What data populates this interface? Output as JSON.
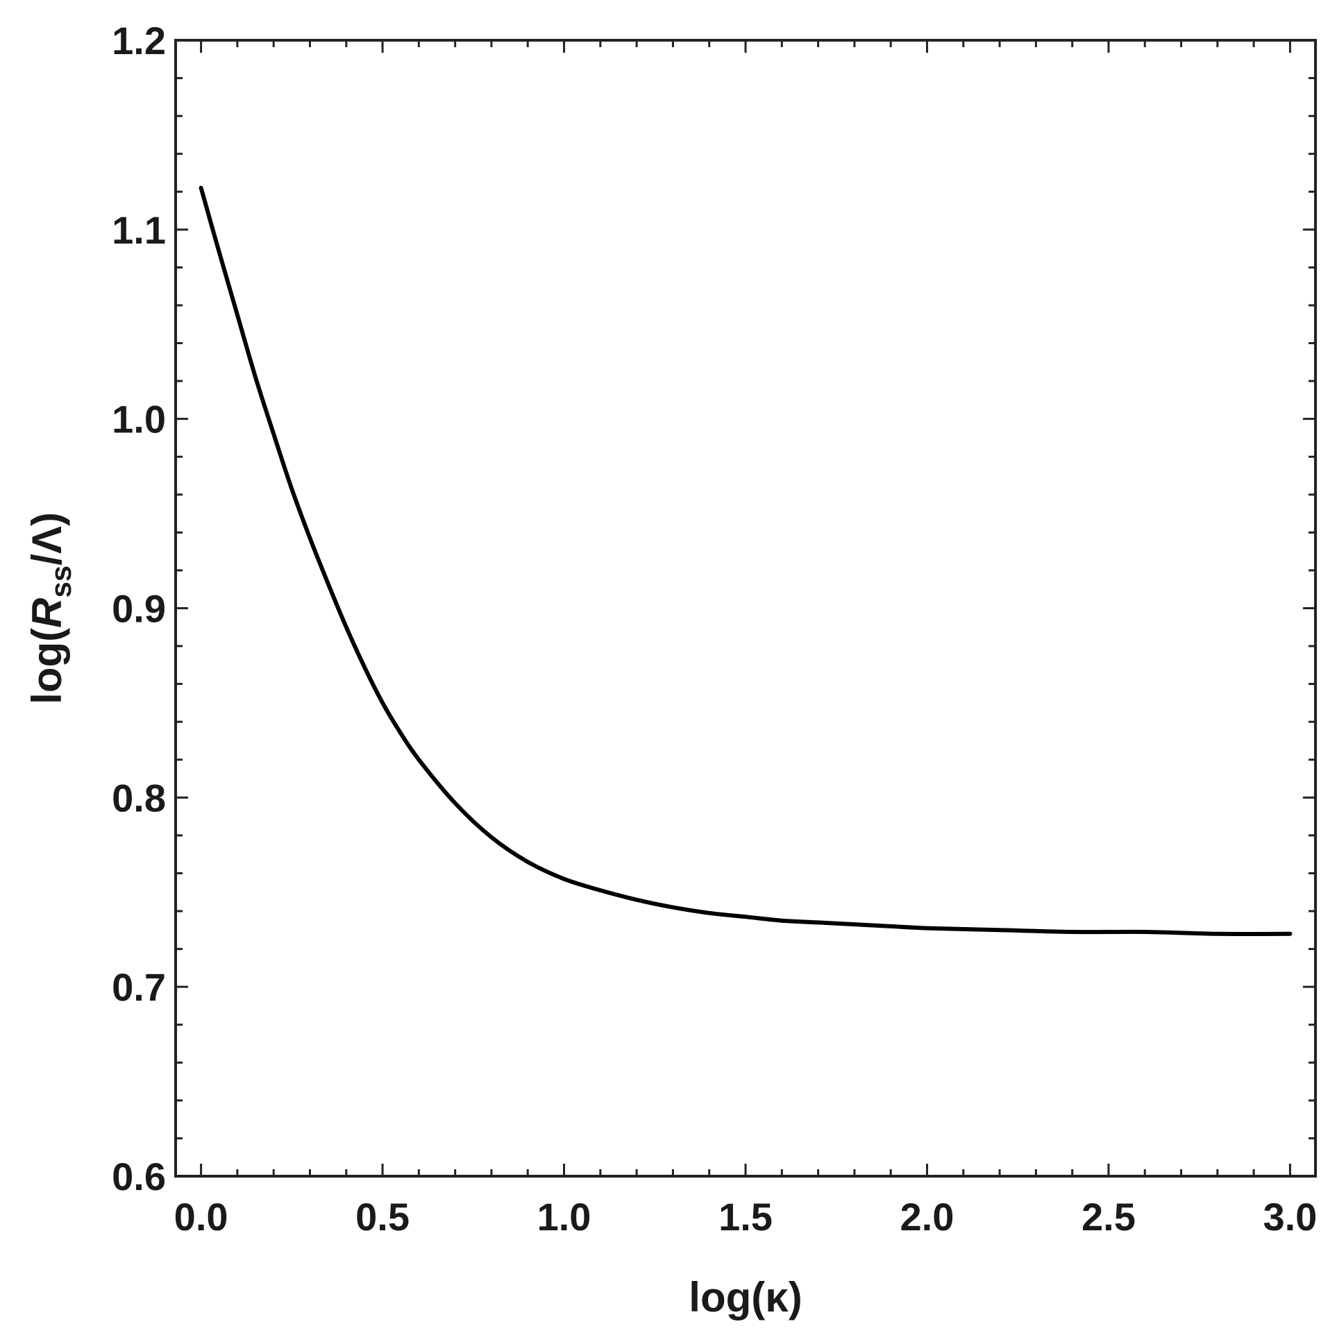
{
  "chart_data": {
    "type": "line",
    "title": "",
    "xlabel": "log(κ)",
    "ylabel": {
      "prefix": "log(",
      "symbol": "R",
      "subscript": "ss",
      "suffix": "/Λ)"
    },
    "xlim": [
      -0.07,
      3.07
    ],
    "ylim": [
      0.6,
      1.2
    ],
    "xticks": [
      0.0,
      0.5,
      1.0,
      1.5,
      2.0,
      2.5,
      3.0
    ],
    "xtick_labels": [
      "0.0",
      "0.5",
      "1.0",
      "1.5",
      "2.0",
      "2.5",
      "3.0"
    ],
    "yticks": [
      0.6,
      0.7,
      0.8,
      0.9,
      1.0,
      1.1,
      1.2
    ],
    "ytick_labels": [
      "0.6",
      "0.7",
      "0.8",
      "0.9",
      "1.0",
      "1.1",
      "1.2"
    ],
    "grid": false,
    "series": [
      {
        "color": "#000000",
        "x": [
          0.0,
          0.05,
          0.1,
          0.15,
          0.2,
          0.25,
          0.3,
          0.35,
          0.4,
          0.45,
          0.5,
          0.55,
          0.6,
          0.7,
          0.8,
          0.9,
          1.0,
          1.1,
          1.2,
          1.3,
          1.4,
          1.5,
          1.6,
          1.7,
          1.8,
          1.9,
          2.0,
          2.2,
          2.4,
          2.6,
          2.8,
          3.0
        ],
        "y": [
          1.122,
          1.088,
          1.055,
          1.022,
          0.992,
          0.963,
          0.937,
          0.913,
          0.89,
          0.869,
          0.85,
          0.834,
          0.82,
          0.797,
          0.779,
          0.766,
          0.757,
          0.751,
          0.746,
          0.742,
          0.739,
          0.737,
          0.735,
          0.734,
          0.733,
          0.732,
          0.731,
          0.73,
          0.729,
          0.729,
          0.728,
          0.728
        ]
      }
    ]
  }
}
